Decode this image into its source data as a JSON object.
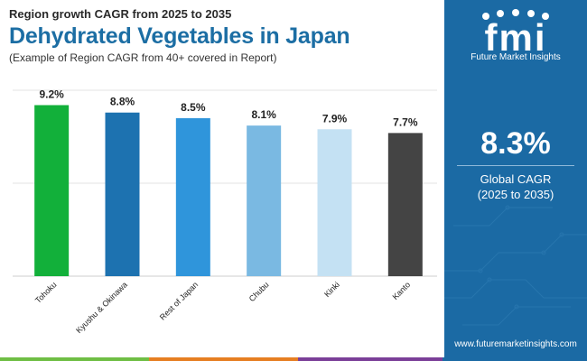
{
  "header": {
    "subtitle": "Region growth CAGR from 2025 to 2035",
    "title": "Dehydrated Vegetables in Japan",
    "note": "(Example of Region CAGR from 40+ covered in Report)"
  },
  "chart_data": {
    "type": "bar",
    "title": "Dehydrated Vegetables in Japan",
    "subtitle": "Region growth CAGR from 2025 to 2035",
    "categories": [
      "Tohoku",
      "Kyushu & Okinawa",
      "Rest of Japan",
      "Chubu",
      "Kinki",
      "Kanto"
    ],
    "values": [
      9.2,
      8.8,
      8.5,
      8.1,
      7.9,
      7.7
    ],
    "labels": [
      "9.2%",
      "8.8%",
      "8.5%",
      "8.1%",
      "7.9%",
      "7.7%"
    ],
    "colors": [
      "#12b03a",
      "#1d72b0",
      "#2f95db",
      "#7ab9e2",
      "#c4e1f3",
      "#444444"
    ],
    "ylim": [
      0,
      10
    ],
    "gridlines": [
      0,
      5,
      10
    ],
    "xlabel": "",
    "ylabel": ""
  },
  "sidebar": {
    "logo_text": "fmi",
    "brand": "Future Market Insights",
    "value": "8.3%",
    "label": "Global CAGR",
    "range": "(2025 to 2035)",
    "website": "www.futuremarketinsights.com",
    "background_color": "#1b6aa4"
  },
  "bottom_bar_colors": [
    "#6fbe44",
    "#e67e22",
    "#7b3f98",
    "#1b6aa4"
  ]
}
